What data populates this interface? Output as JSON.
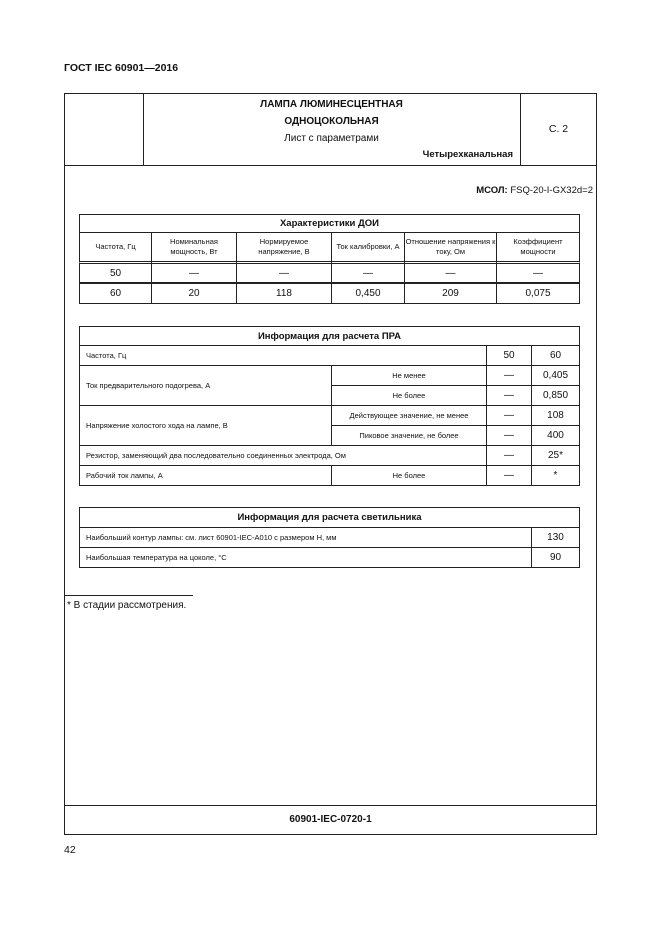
{
  "header": {
    "standard": "ГОСТ IEC 60901—2016",
    "title_line1": "ЛАМПА ЛЮМИНЕСЦЕНТНАЯ",
    "title_line2": "ОДНОЦОКОЛЬНАЯ",
    "subtitle": "Лист с параметрами",
    "type": "Четырехканальная",
    "page_ref": "С. 2"
  },
  "msol": {
    "label": "МСОЛ:",
    "value": "FSQ-20-I-GX32d=2"
  },
  "doi": {
    "title": "Характеристики ДОИ",
    "columns": [
      "Частота, Гц",
      "Номинальная мощность, Вт",
      "Нормируемое напряжение, В",
      "Ток калибровки, А",
      "Отношение напряжения к току, Ом",
      "Коэффициент мощности"
    ],
    "rows": [
      [
        "50",
        "—",
        "—",
        "—",
        "—",
        "—"
      ],
      [
        "60",
        "20",
        "118",
        "0,450",
        "209",
        "0,075"
      ]
    ]
  },
  "pra": {
    "title": "Информация для расчета ПРА",
    "freq": {
      "label": "Частота, Гц",
      "v50": "50",
      "v60": "60"
    },
    "preheat": {
      "label": "Ток предварительного подогрева, А",
      "min_label": "Не менее",
      "min50": "—",
      "min60": "0,405",
      "max_label": "Не более",
      "max50": "—",
      "max60": "0,850"
    },
    "ocv": {
      "label": "Напряжение холостого хода на лампе, В",
      "rms_label": "Действующее значение, не менее",
      "rms50": "—",
      "rms60": "108",
      "peak_label": "Пиковое значение, не более",
      "peak50": "—",
      "peak60": "400"
    },
    "resistor": {
      "label": "Резистор, заменяющий два последовательно соединенных электрода, Ом",
      "v50": "—",
      "v60": "25*"
    },
    "current": {
      "label": "Рабочий ток лампы, А",
      "sub": "Не более",
      "v50": "—",
      "v60": "*"
    }
  },
  "lum": {
    "title": "Информация для расчета светильника",
    "rows": [
      {
        "label": "Наибольший контур лампы: см. лист 60901-IEC-A010 с размером H, мм",
        "value": "130"
      },
      {
        "label": "Наибольшая температура на цоколе, °C",
        "value": "90"
      }
    ]
  },
  "footnote": "* В стадии рассмотрения.",
  "footer": {
    "sheet": "60901-IEC-0720-1",
    "page_number": "42"
  }
}
